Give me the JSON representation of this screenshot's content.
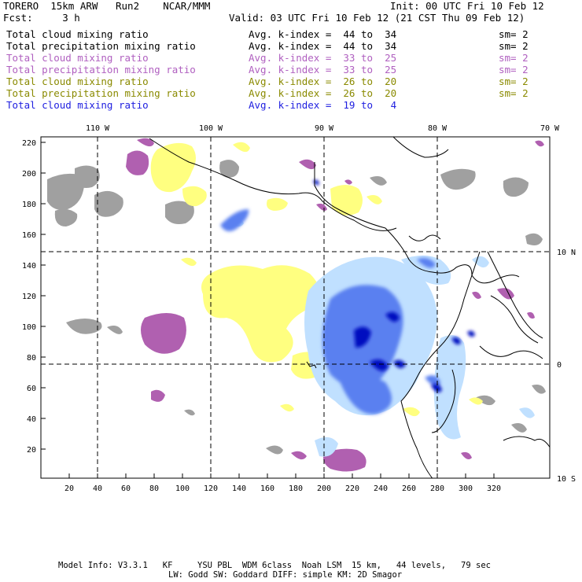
{
  "header": {
    "title_left": "TORERO  15km ARW   Run2    NCAR/MMM",
    "init": "Init: 00 UTC Fri 10 Feb 12",
    "fcst": "Fcst:     3 h",
    "valid": "Valid: 03 UTC Fri 10 Feb 12 (21 CST Thu 09 Feb 12)"
  },
  "legend": [
    {
      "field": "Total cloud mixing ratio",
      "kindex": "Avg. k-index =  44 to  34",
      "sm": "sm= 2",
      "color": "#000000"
    },
    {
      "field": "Total precipitation mixing ratio",
      "kindex": "Avg. k-index =  44 to  34",
      "sm": "sm= 2",
      "color": "#000000"
    },
    {
      "field": "Total cloud mixing ratio",
      "kindex": "Avg. k-index =  33 to  25",
      "sm": "sm= 2",
      "color": "#b060c0"
    },
    {
      "field": "Total precipitation mixing ratio",
      "kindex": "Avg. k-index =  33 to  25",
      "sm": "sm= 2",
      "color": "#b060c0"
    },
    {
      "field": "Total cloud mixing ratio",
      "kindex": "Avg. k-index =  26 to  20",
      "sm": "sm= 2",
      "color": "#8a8a00"
    },
    {
      "field": "Total precipitation mixing ratio",
      "kindex": "Avg. k-index =  26 to  20",
      "sm": "sm= 2",
      "color": "#8a8a00"
    },
    {
      "field": "Total cloud mixing ratio",
      "kindex": "Avg. k-index =  19 to   4",
      "sm": "",
      "color": "#2020e0"
    }
  ],
  "map": {
    "top_lon_labels": [
      "110 W",
      "100 W",
      "90 W",
      "80 W",
      "70 W"
    ],
    "right_lat_labels": [
      "10 N",
      "0",
      "10 S"
    ],
    "left_y_ticks": [
      "220",
      "200",
      "180",
      "160",
      "140",
      "120",
      "100",
      "80",
      "60",
      "40",
      "20"
    ],
    "bottom_x_ticks": [
      "20",
      "40",
      "60",
      "80",
      "100",
      "120",
      "140",
      "160",
      "180",
      "200",
      "220",
      "240",
      "260",
      "280",
      "300",
      "320"
    ],
    "colors": {
      "gray": "#a0a0a0",
      "purple": "#b060b0",
      "yellow": "#ffff80",
      "lightblue": "#c0e0ff",
      "blue": "#3050e0",
      "darkblue": "#0010c0"
    }
  },
  "footer": {
    "line1": "Model Info: V3.3.1   KF     YSU PBL  WDM 6class  Noah LSM  15 km,   44 levels,   79 sec",
    "line2": "LW: Godd SW: Goddard DIFF: simple KM: 2D Smagor"
  }
}
